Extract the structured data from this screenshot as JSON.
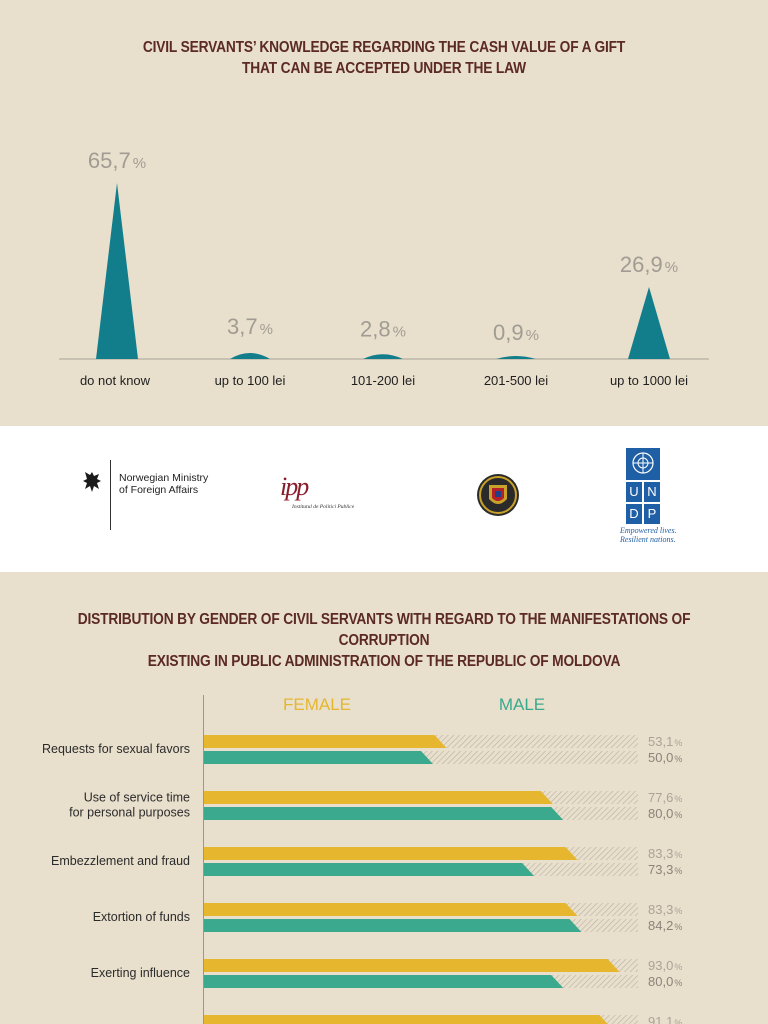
{
  "chart_data": [
    {
      "type": "area",
      "title": "CIVIL SERVANTS’ KNOWLEDGE REGARDING THE CASH VALUE OF A GIFT\nTHAT CAN BE ACCEPTED UNDER THE LAW",
      "title_lines": [
        "CIVIL SERVANTS’ KNOWLEDGE REGARDING THE CASH VALUE OF A GIFT",
        "THAT CAN BE ACCEPTED UNDER THE LAW"
      ],
      "categories": [
        "do not know",
        "up to 100 lei",
        "101-200 lei",
        "201-500 lei",
        "up to 1000 lei"
      ],
      "values": [
        65.7,
        3.7,
        2.8,
        0.9,
        26.9
      ],
      "value_labels": [
        "65,7",
        "3,7",
        "2,8",
        "0,9",
        "26,9"
      ],
      "unit": "%",
      "xlabel": "",
      "ylabel": "",
      "ylim": [
        0,
        65.7
      ],
      "grid": false,
      "color": "#127e8b"
    },
    {
      "type": "bar",
      "orientation": "horizontal",
      "title_lines": [
        "DISTRIBUTION BY GENDER OF CIVIL SERVANTS WITH REGARD TO THE MANIFESTATIONS OF CORRUPTION",
        "EXISTING IN PUBLIC ADMINISTRATION OF THE REPUBLIC OF MOLDOVA"
      ],
      "categories": [
        [
          "Requests for sexual favors"
        ],
        [
          "Use of service time",
          "for personal purposes"
        ],
        [
          "Embezzlement and fraud"
        ],
        [
          "Extortion of funds"
        ],
        [
          "Exerting influence"
        ],
        [
          ""
        ]
      ],
      "series": [
        {
          "name": "FEMALE",
          "color": "#e6b62e",
          "values": [
            53.1,
            77.6,
            83.3,
            83.3,
            93.0,
            91.1
          ],
          "value_labels": [
            "53,1",
            "77,6",
            "83,3",
            "83,3",
            "93,0",
            "91,1"
          ]
        },
        {
          "name": "MALE",
          "color": "#3aa98e",
          "values": [
            50.0,
            80.0,
            73.3,
            84.2,
            80.0,
            null
          ],
          "value_labels": [
            "50,0",
            "80,0",
            "73,3",
            "84,2",
            "80,0",
            ""
          ]
        }
      ],
      "unit": "%",
      "xlim": [
        0,
        100
      ],
      "grid": false,
      "legend": "top"
    }
  ],
  "logos": {
    "norway": [
      "Norwegian Ministry",
      "of Foreign Affairs"
    ],
    "ipp": {
      "mark": "ipp",
      "sub": "Institutul de Politici Publice"
    },
    "undp": {
      "letters": [
        "U",
        "N",
        "D",
        "P"
      ],
      "tagline": [
        "Empowered lives.",
        "Resilient nations."
      ]
    },
    "colors": {
      "title": "#5b2a22",
      "teal": "#127e8b",
      "undp_blue": "#1f5fa6",
      "ipp_red": "#8a1c2a"
    }
  }
}
